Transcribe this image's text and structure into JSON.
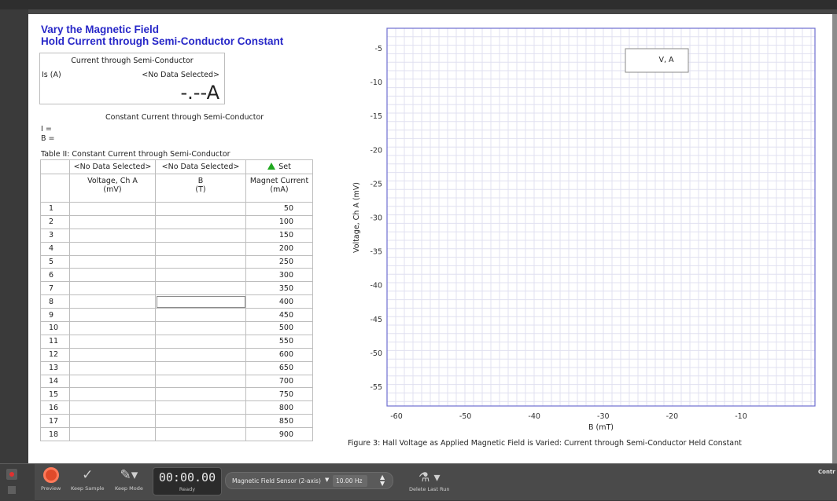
{
  "header": {
    "title_line1": "Vary the Magnetic Field",
    "title_line2": "Hold Current through Semi-Conductor Constant"
  },
  "meter": {
    "title": "Current through Semi-Conductor",
    "label": "Is (A)",
    "no_data": "<No Data Selected>",
    "value": "-.--A"
  },
  "constant_section": {
    "heading": "Constant Current through Semi-Conductor",
    "i_label": "I =",
    "b_label": "B ="
  },
  "table": {
    "caption": "Table II: Constant Current through Semi-Conductor",
    "header_row": [
      "<No Data Selected>",
      "<No Data Selected>",
      "Set"
    ],
    "columns": [
      {
        "name": "Voltage, Ch A",
        "unit": "(mV)"
      },
      {
        "name": "B",
        "unit": "(T)"
      },
      {
        "name": "Magnet Current",
        "unit": "(mA)"
      }
    ],
    "rows": [
      {
        "n": "1",
        "mc": "50"
      },
      {
        "n": "2",
        "mc": "100"
      },
      {
        "n": "3",
        "mc": "150"
      },
      {
        "n": "4",
        "mc": "200"
      },
      {
        "n": "5",
        "mc": "250"
      },
      {
        "n": "6",
        "mc": "300"
      },
      {
        "n": "7",
        "mc": "350"
      },
      {
        "n": "8",
        "mc": "400"
      },
      {
        "n": "9",
        "mc": "450"
      },
      {
        "n": "10",
        "mc": "500"
      },
      {
        "n": "11",
        "mc": "550"
      },
      {
        "n": "12",
        "mc": "600"
      },
      {
        "n": "13",
        "mc": "650"
      },
      {
        "n": "14",
        "mc": "700"
      },
      {
        "n": "15",
        "mc": "750"
      },
      {
        "n": "16",
        "mc": "800"
      },
      {
        "n": "17",
        "mc": "850"
      },
      {
        "n": "18",
        "mc": "900"
      }
    ],
    "selected_row_index": 7,
    "set_color": "#1fa81f"
  },
  "graph": {
    "ylabel": "Voltage, Ch A (mV)",
    "xlabel": "B (mT)",
    "yticks": [
      "-5",
      "-10",
      "-15",
      "-20",
      "-25",
      "-30",
      "-35",
      "-40",
      "-45",
      "-50",
      "-55"
    ],
    "xticks": [
      "-60",
      "-50",
      "-40",
      "-30",
      "-20",
      "-10"
    ],
    "legend": "V, A",
    "caption": "Figure 3: Hall Voltage as Applied Magnetic Field is Varied: Current through Semi-Conductor Held Constant",
    "border_color": "#6f6fd0",
    "grid_color": "#e0e0f0"
  },
  "toolbar": {
    "preview": "Preview",
    "keep_sample": "Keep Sample",
    "keep_mode": "Keep Mode",
    "timer": "00:00.00",
    "status": "Ready",
    "sensor": "Magnetic Field Sensor (2-axis)",
    "rate": "10.00 Hz",
    "delete_last_run": "Delete Last Run",
    "contr": "Contr"
  }
}
